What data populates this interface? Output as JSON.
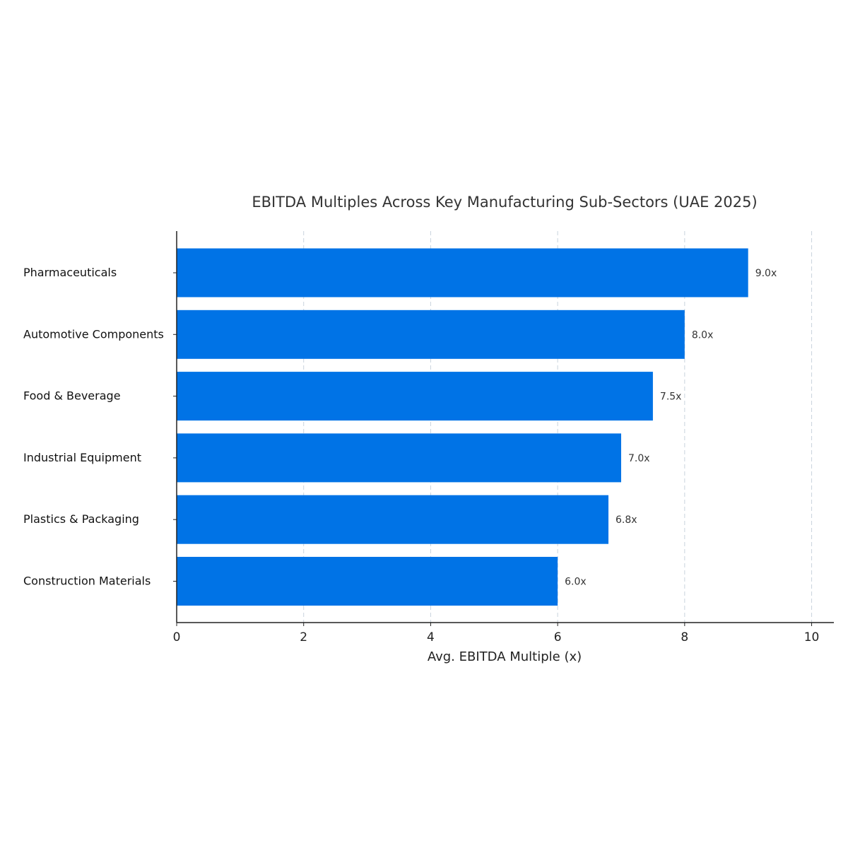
{
  "chart_data": {
    "type": "bar",
    "orientation": "horizontal",
    "title": "EBITDA Multiples Across Key Manufacturing Sub-Sectors (UAE 2025)",
    "xlabel": "Avg. EBITDA Multiple (x)",
    "ylabel": "",
    "categories": [
      "Pharmaceuticals",
      "Automotive Components",
      "Food & Beverage",
      "Industrial Equipment",
      "Plastics & Packaging",
      "Construction Materials"
    ],
    "values": [
      9.0,
      8.0,
      7.5,
      7.0,
      6.8,
      6.0
    ],
    "data_labels": [
      "9.0x",
      "8.0x",
      "7.5x",
      "7.0x",
      "6.8x",
      "6.0x"
    ],
    "xlim": [
      0,
      10.35
    ],
    "xticks": [
      0,
      2,
      4,
      6,
      8,
      10
    ],
    "xtick_labels": [
      "0",
      "2",
      "4",
      "6",
      "8",
      "10"
    ],
    "grid": "vertical dashed",
    "bar_color": "#0073E6",
    "legend": "none"
  }
}
